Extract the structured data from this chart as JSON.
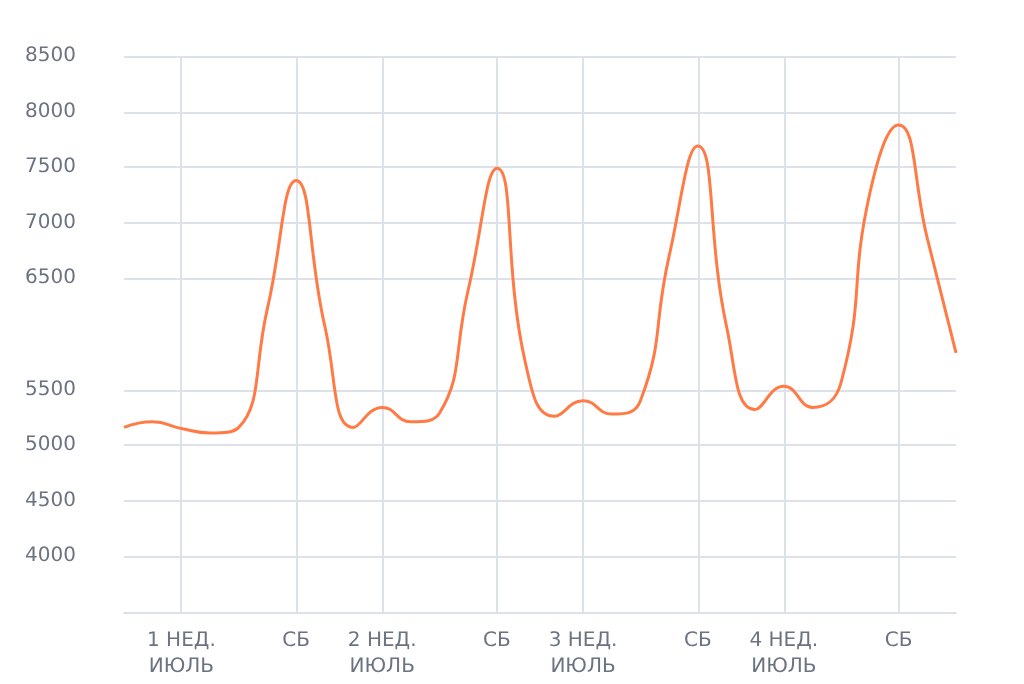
{
  "chart_data": {
    "type": "line",
    "color": "#ff7a45",
    "marker": "none",
    "grid": true,
    "categories": [
      null,
      null,
      "1 НЕД.\nИЮЛЬ",
      null,
      null,
      null,
      "СБ",
      null,
      null,
      "2 НЕД.\nИЮЛЬ",
      null,
      null,
      null,
      "СБ",
      null,
      null,
      "3 НЕД.\nИЮЛЬ",
      null,
      null,
      null,
      "СБ",
      null,
      null,
      "4 НЕД.\nИЮЛЬ",
      null,
      null,
      null,
      "СБ",
      null,
      null
    ],
    "ylim": [
      3500,
      8500
    ],
    "yticks": [
      {
        "value": 3500,
        "label": null
      },
      4000,
      4500,
      5000,
      5500,
      6500,
      7000,
      7500,
      8000,
      8500
    ],
    "values": [
      5160,
      5210,
      5150,
      5110,
      5160,
      6230,
      7380,
      6070,
      5160,
      5340,
      5210,
      5290,
      6400,
      7490,
      5730,
      5260,
      5400,
      5280,
      5400,
      6700,
      7690,
      6070,
      5320,
      5530,
      5340,
      5570,
      7270,
      7880,
      6860,
      5830
    ]
  }
}
